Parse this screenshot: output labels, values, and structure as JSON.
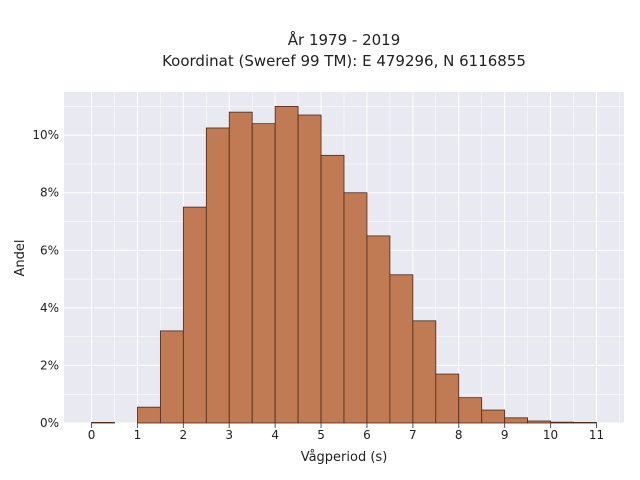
{
  "chart_data": {
    "type": "bar",
    "title": [
      "År 1979 - 2019",
      "Koordinat (Sweref 99 TM): E 479296, N 6116855"
    ],
    "xlabel": "Vågperiod (s)",
    "ylabel": "Andel",
    "xlim": [
      -0.6,
      11.6
    ],
    "ylim": [
      0,
      11.5
    ],
    "x_ticks": [
      0,
      1,
      2,
      3,
      4,
      5,
      6,
      7,
      8,
      9,
      10,
      11
    ],
    "y_ticks": [
      0,
      2,
      4,
      6,
      8,
      10
    ],
    "y_tick_labels": [
      "0%",
      "2%",
      "4%",
      "6%",
      "8%",
      "10%"
    ],
    "bin_width": 0.5,
    "bins": [
      {
        "start": 0.0,
        "value": 0.02
      },
      {
        "start": 0.5,
        "value": 0.0
      },
      {
        "start": 1.0,
        "value": 0.55
      },
      {
        "start": 1.5,
        "value": 3.2
      },
      {
        "start": 2.0,
        "value": 7.5
      },
      {
        "start": 2.5,
        "value": 10.25
      },
      {
        "start": 3.0,
        "value": 10.8
      },
      {
        "start": 3.5,
        "value": 10.4
      },
      {
        "start": 4.0,
        "value": 11.0
      },
      {
        "start": 4.5,
        "value": 10.7
      },
      {
        "start": 5.0,
        "value": 9.3
      },
      {
        "start": 5.5,
        "value": 8.0
      },
      {
        "start": 6.0,
        "value": 6.5
      },
      {
        "start": 6.5,
        "value": 5.15
      },
      {
        "start": 7.0,
        "value": 3.55
      },
      {
        "start": 7.5,
        "value": 1.7
      },
      {
        "start": 8.0,
        "value": 0.88
      },
      {
        "start": 8.5,
        "value": 0.45
      },
      {
        "start": 9.0,
        "value": 0.18
      },
      {
        "start": 9.5,
        "value": 0.07
      },
      {
        "start": 10.0,
        "value": 0.03
      },
      {
        "start": 10.5,
        "value": 0.02
      }
    ],
    "grid": true,
    "colors": {
      "bar_fill": "#c07b55",
      "bar_edge": "#4a2a18",
      "plot_bg": "#e9e9f1",
      "grid": "#ffffff"
    }
  }
}
